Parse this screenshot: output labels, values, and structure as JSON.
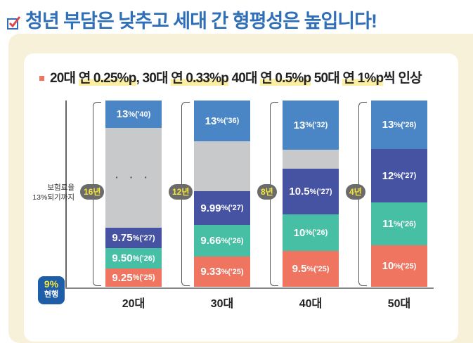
{
  "title": "청년 부담은 낮추고 세대 간 형평성은 높입니다!",
  "subtitle": {
    "parts": [
      {
        "text": "20대 ",
        "hl": false
      },
      {
        "text": "연 0.25%p",
        "hl": true
      },
      {
        "text": ", 30대 ",
        "hl": false
      },
      {
        "text": "연 0.33%p",
        "hl": true
      },
      {
        "text": " 40대 ",
        "hl": false
      },
      {
        "text": "연 0.5%p",
        "hl": true
      },
      {
        "text": " 50대 ",
        "hl": false
      },
      {
        "text": "연 1%p",
        "hl": true
      },
      {
        "text": "씩 인상",
        "hl": false
      }
    ]
  },
  "y_label_line1": "보험료율",
  "y_label_line2": "13%되기까지",
  "current": {
    "value": "9%",
    "label": "현행"
  },
  "colors": {
    "y2025": "#ef7560",
    "y2026": "#47bfa5",
    "y2027": "#4653a3",
    "gap": "#c8c9cb",
    "final": "#4a86c5",
    "badge_text": "#f5e63a",
    "title": "#2f6fb8"
  },
  "chart_data": {
    "type": "bar",
    "stacked": true,
    "categories": [
      "20대",
      "30대",
      "40대",
      "50대"
    ],
    "groups": [
      {
        "category": "20대",
        "years_to_13": "16년",
        "segments": [
          {
            "value": "9.25",
            "unit": "%",
            "year": "('25)",
            "color": "y2025"
          },
          {
            "value": "9.50",
            "unit": "%",
            "year": "('26)",
            "color": "y2026"
          },
          {
            "value": "9.75",
            "unit": "%",
            "year": "('27)",
            "color": "y2027"
          },
          {
            "value": "",
            "unit": "",
            "year": "",
            "color": "gap",
            "ellipsis": "· · ·"
          },
          {
            "value": "13",
            "unit": "%",
            "year": "('40)",
            "color": "final"
          }
        ]
      },
      {
        "category": "30대",
        "years_to_13": "12년",
        "segments": [
          {
            "value": "9.33",
            "unit": "%",
            "year": "('25)",
            "color": "y2025"
          },
          {
            "value": "9.66",
            "unit": "%",
            "year": "('26)",
            "color": "y2026"
          },
          {
            "value": "9.99",
            "unit": "%",
            "year": "('27)",
            "color": "y2027"
          },
          {
            "value": "",
            "unit": "",
            "year": "",
            "color": "gap"
          },
          {
            "value": "13",
            "unit": "%",
            "year": "('36)",
            "color": "final"
          }
        ]
      },
      {
        "category": "40대",
        "years_to_13": "8년",
        "segments": [
          {
            "value": "9.5",
            "unit": "%",
            "year": "('25)",
            "color": "y2025"
          },
          {
            "value": "10",
            "unit": "%",
            "year": "('26)",
            "color": "y2026"
          },
          {
            "value": "10.5",
            "unit": "%",
            "year": "('27)",
            "color": "y2027"
          },
          {
            "value": "",
            "unit": "",
            "year": "",
            "color": "gap"
          },
          {
            "value": "13",
            "unit": "%",
            "year": "('32)",
            "color": "final"
          }
        ]
      },
      {
        "category": "50대",
        "years_to_13": "4년",
        "segments": [
          {
            "value": "10",
            "unit": "%",
            "year": "('25)",
            "color": "y2025"
          },
          {
            "value": "11",
            "unit": "%",
            "year": "('26)",
            "color": "y2026"
          },
          {
            "value": "12",
            "unit": "%",
            "year": "('27)",
            "color": "y2027"
          },
          {
            "value": "13",
            "unit": "%",
            "year": "('28)",
            "color": "final"
          }
        ]
      }
    ]
  }
}
